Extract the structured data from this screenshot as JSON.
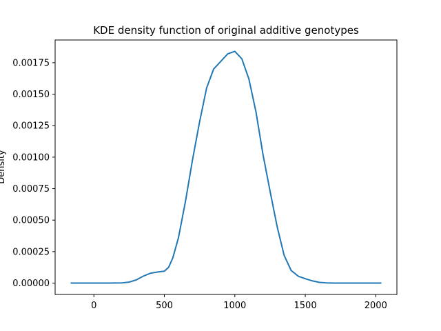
{
  "chart_data": {
    "type": "line",
    "title": "KDE density function of original additive genotypes",
    "xlabel": "",
    "ylabel": "Density",
    "xlim": [
      -275,
      2150
    ],
    "ylim": [
      -9e-05,
      0.00193
    ],
    "grid": false,
    "legend": "none",
    "x_ticks": [
      0,
      500,
      1000,
      1500,
      2000
    ],
    "x_tick_labels": [
      "0",
      "500",
      "1000",
      "1500",
      "2000"
    ],
    "y_ticks": [
      0,
      0.00025,
      0.0005,
      0.00075,
      0.001,
      0.00125,
      0.0015,
      0.00175
    ],
    "y_tick_labels": [
      "0.00000",
      "0.00025",
      "0.00050",
      "0.00075",
      "0.00100",
      "0.00125",
      "0.00150",
      "0.00175"
    ],
    "series": [
      {
        "color": "#1f77b4",
        "x": [
          -165,
          0,
          100,
          200,
          250,
          300,
          350,
          400,
          450,
          500,
          530,
          560,
          600,
          650,
          700,
          750,
          800,
          850,
          900,
          950,
          1000,
          1050,
          1100,
          1150,
          1200,
          1250,
          1300,
          1350,
          1400,
          1450,
          1500,
          1550,
          1600,
          1650,
          1700,
          1800,
          1900,
          2040
        ],
        "y": [
          0,
          0,
          0,
          2e-06,
          8e-06,
          2.5e-05,
          5.5e-05,
          7.8e-05,
          8.8e-05,
          9.5e-05,
          0.000125,
          0.0002,
          0.00036,
          0.00065,
          0.00098,
          0.00128,
          0.00155,
          0.0017,
          0.00176,
          0.00182,
          0.00184,
          0.00178,
          0.00162,
          0.00136,
          0.00102,
          0.00073,
          0.00045,
          0.00022,
          0.0001,
          5.5e-05,
          3.5e-05,
          1.8e-05,
          6e-06,
          2e-06,
          0,
          0,
          0,
          0
        ]
      }
    ]
  }
}
